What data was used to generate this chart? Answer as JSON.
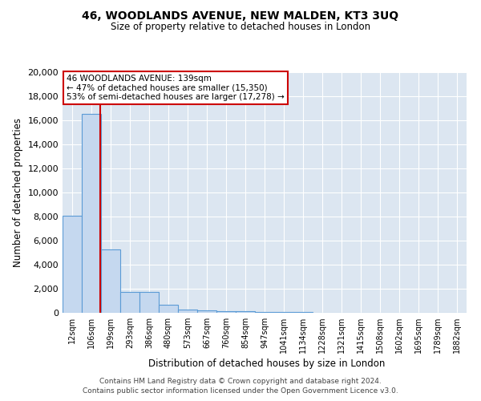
{
  "title1": "46, WOODLANDS AVENUE, NEW MALDEN, KT3 3UQ",
  "title2": "Size of property relative to detached houses in London",
  "xlabel": "Distribution of detached houses by size in London",
  "ylabel": "Number of detached properties",
  "footer1": "Contains HM Land Registry data © Crown copyright and database right 2024.",
  "footer2": "Contains public sector information licensed under the Open Government Licence v3.0.",
  "annotation_title": "46 WOODLANDS AVENUE: 139sqm",
  "annotation_line1": "← 47% of detached houses are smaller (15,350)",
  "annotation_line2": "53% of semi-detached houses are larger (17,278) →",
  "bar_color": "#c5d8ef",
  "bar_edge_color": "#5b9bd5",
  "red_line_color": "#cc0000",
  "annotation_box_color": "#cc0000",
  "background_color": "#dce6f1",
  "ylim": [
    0,
    20000
  ],
  "yticks": [
    0,
    2000,
    4000,
    6000,
    8000,
    10000,
    12000,
    14000,
    16000,
    18000,
    20000
  ],
  "categories": [
    "12sqm",
    "106sqm",
    "199sqm",
    "293sqm",
    "386sqm",
    "480sqm",
    "573sqm",
    "667sqm",
    "760sqm",
    "854sqm",
    "947sqm",
    "1041sqm",
    "1134sqm",
    "1228sqm",
    "1321sqm",
    "1415sqm",
    "1508sqm",
    "1602sqm",
    "1695sqm",
    "1789sqm",
    "1882sqm"
  ],
  "values": [
    8100,
    16500,
    5300,
    1750,
    1750,
    700,
    300,
    200,
    150,
    150,
    100,
    70,
    50,
    30,
    20,
    15,
    10,
    8,
    5,
    3,
    2
  ]
}
